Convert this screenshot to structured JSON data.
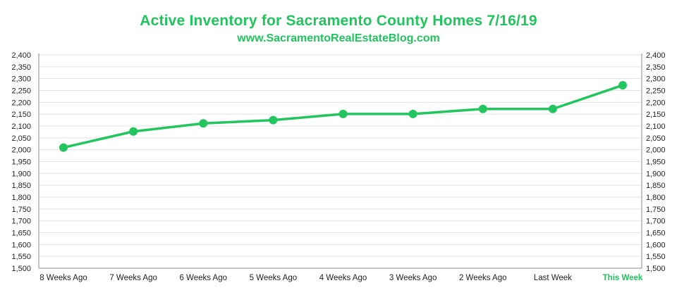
{
  "chart_data": {
    "type": "line",
    "title": "Active Inventory for Sacramento County Homes 7/16/19",
    "subtitle": "www.SacramentoRealEstateBlog.com",
    "categories": [
      "8 Weeks Ago",
      "7 Weeks Ago",
      "6 Weeks Ago",
      "5 Weeks Ago",
      "4 Weeks Ago",
      "3 Weeks Ago",
      "2 Weeks Ago",
      "Last Week",
      "This Week"
    ],
    "highlight_category": "This Week",
    "series": [
      {
        "values": [
          2009,
          2077,
          2111,
          2125,
          2151,
          2151,
          2172,
          2172,
          2272
        ],
        "color": "#22c55e"
      }
    ],
    "ylim": [
      1500,
      2400
    ],
    "yticks": [
      "1,500",
      "1,550",
      "1,600",
      "1,650",
      "1,700",
      "1,750",
      "1,800",
      "1,850",
      "1,900",
      "1,950",
      "2,000",
      "2,050",
      "2,100",
      "2,150",
      "2,200",
      "2,250",
      "2,300",
      "2,350",
      "2,400"
    ],
    "ytick_values": [
      1500,
      1550,
      1600,
      1650,
      1700,
      1750,
      1800,
      1850,
      1900,
      1950,
      2000,
      2050,
      2100,
      2150,
      2200,
      2250,
      2300,
      2350,
      2400
    ],
    "y_axis_both_sides": true,
    "grid": true,
    "xlabel": "",
    "ylabel": "",
    "colors": {
      "accent": "#21c45d",
      "grid": "#e3e3e3",
      "axis": "#888888",
      "text": "#222222"
    }
  }
}
